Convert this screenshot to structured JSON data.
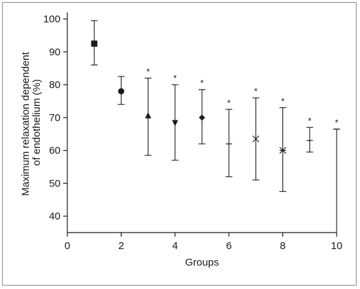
{
  "chart_data": {
    "type": "scatter",
    "xlabel": "Groups",
    "ylabel": [
      "Maximum relaxation dependent",
      "of endothelium (%)"
    ],
    "xlim": [
      0,
      10
    ],
    "ylim": [
      35,
      102
    ],
    "xticks": [
      "0",
      "2",
      "4",
      "6",
      "8",
      "10"
    ],
    "xtick_values": [
      0,
      2,
      4,
      6,
      8,
      10
    ],
    "yticks": [
      "40",
      "50",
      "60",
      "70",
      "80",
      "90",
      "100"
    ],
    "ytick_values": [
      40,
      50,
      60,
      70,
      80,
      90,
      100
    ],
    "significance_marker": "*",
    "points": [
      {
        "x": 1,
        "y": 92.5,
        "lower": 86,
        "upper": 99.5,
        "marker": "square",
        "significant": false
      },
      {
        "x": 2,
        "y": 78,
        "lower": 74,
        "upper": 82.5,
        "marker": "circle",
        "significant": false
      },
      {
        "x": 3,
        "y": 70.5,
        "lower": 58.5,
        "upper": 82,
        "marker": "triangle-up",
        "significant": true
      },
      {
        "x": 4,
        "y": 68.5,
        "lower": 57,
        "upper": 80,
        "marker": "triangle-down",
        "significant": true
      },
      {
        "x": 5,
        "y": 70,
        "lower": 62,
        "upper": 78.5,
        "marker": "diamond",
        "significant": true
      },
      {
        "x": 6,
        "y": 62,
        "lower": 52,
        "upper": 72.5,
        "marker": "dash",
        "significant": true
      },
      {
        "x": 7,
        "y": 63.5,
        "lower": 51,
        "upper": 76,
        "marker": "x",
        "significant": true
      },
      {
        "x": 8,
        "y": 60,
        "lower": 47.5,
        "upper": 73,
        "marker": "star",
        "significant": true
      },
      {
        "x": 9,
        "y": 63,
        "lower": 59.5,
        "upper": 67,
        "marker": "dash",
        "significant": true
      },
      {
        "x": 10,
        "y": 66.5,
        "lower": 35,
        "upper": 66.5,
        "marker": "dash",
        "significant": true
      }
    ]
  }
}
